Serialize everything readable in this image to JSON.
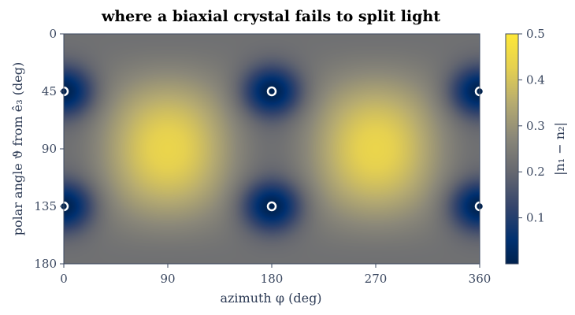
{
  "chart_data": {
    "type": "heatmap",
    "title": "where a biaxial crystal fails to split light",
    "xlabel": "azimuth φ  (deg)",
    "ylabel": "polar angle ϑ from ê₃  (deg)",
    "xlim": [
      0,
      360
    ],
    "ylim": [
      180,
      0
    ],
    "x_ticks": [
      0,
      90,
      180,
      270,
      360
    ],
    "y_ticks": [
      0,
      45,
      90,
      135,
      180
    ],
    "colorbar": {
      "label": "|n₁ − n₂|",
      "range": [
        0.0,
        0.5
      ],
      "ticks": [
        0.1,
        0.2,
        0.3,
        0.4,
        0.5
      ],
      "colormap": "cividis"
    },
    "field": {
      "quantity": "birefringence |n₁ − n₂|",
      "min": 0.0,
      "max": 0.5,
      "maxima_at": [
        [
          90,
          90
        ],
        [
          270,
          90
        ]
      ]
    },
    "optic_axes": [
      {
        "azimuth": 0,
        "polar": 45
      },
      {
        "azimuth": 180,
        "polar": 45
      },
      {
        "azimuth": 360,
        "polar": 45
      },
      {
        "azimuth": 0,
        "polar": 135
      },
      {
        "azimuth": 180,
        "polar": 135
      },
      {
        "azimuth": 360,
        "polar": 135
      }
    ],
    "grid": false
  },
  "colors": {
    "low": "#00224e",
    "mid": "#7c7b78",
    "high": "#fee838",
    "marker_fill": "#00224e",
    "marker_edge": "#ffffff",
    "tick_text": "#3b4860",
    "frame": "#3b4860"
  }
}
